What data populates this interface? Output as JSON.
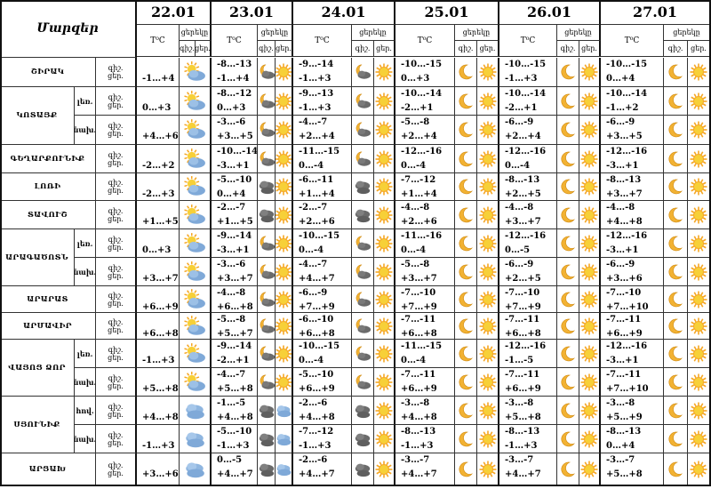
{
  "corner_label": "Մարզեր",
  "dates": [
    "22.01",
    "23.01",
    "24.01",
    "25.01",
    "26.01",
    "27.01"
  ],
  "temp_label": "T⁰C",
  "daytime_label": "ցերեկը",
  "night_short": "գիշ.",
  "day_short": "ցեր.",
  "rows": [
    {
      "region": "ՇԻՐԱԿ",
      "sub": "",
      "span_start": true,
      "span": 1,
      "days": [
        {
          "n": "",
          "d": "-1…+4",
          "ni": "",
          "di": "partly"
        },
        {
          "n": "-8…-13",
          "d": "-1…+4",
          "ni": "moon-cloud",
          "di": "sun"
        },
        {
          "n": "-9…-14",
          "d": "-1…+3",
          "ni": "moon-cloud",
          "di": "sun"
        },
        {
          "n": "-10…-15",
          "d": "0…+3",
          "ni": "moon",
          "di": "sun"
        },
        {
          "n": "-10…-15",
          "d": "-1…+3",
          "ni": "moon",
          "di": "sun"
        },
        {
          "n": "-10…-15",
          "d": "0…+4",
          "ni": "moon",
          "di": "sun"
        }
      ]
    },
    {
      "region": "ԿՈՏԱՅՔ",
      "sub": "լեռ.",
      "span_start": true,
      "span": 2,
      "days": [
        {
          "n": "",
          "d": "0…+3",
          "ni": "",
          "di": "partly"
        },
        {
          "n": "-8…-12",
          "d": "0…+3",
          "ni": "moon-cloud",
          "di": "sun"
        },
        {
          "n": "-9…-13",
          "d": "-1…+3",
          "ni": "moon-cloud",
          "di": "sun"
        },
        {
          "n": "-10…-14",
          "d": "-2…+1",
          "ni": "moon",
          "di": "sun"
        },
        {
          "n": "-10…-14",
          "d": "-2…+1",
          "ni": "moon",
          "di": "sun"
        },
        {
          "n": "-10…-14",
          "d": "-1…+2",
          "ni": "moon",
          "di": "sun"
        }
      ]
    },
    {
      "region": "",
      "sub": "նախ.",
      "span_start": false,
      "days": [
        {
          "n": "",
          "d": "+4…+6",
          "ni": "",
          "di": "partly"
        },
        {
          "n": "-3…-6",
          "d": "+3…+5",
          "ni": "moon-cloud",
          "di": "sun"
        },
        {
          "n": "-4…-7",
          "d": "+2…+4",
          "ni": "moon-cloud",
          "di": "sun"
        },
        {
          "n": "-5…-8",
          "d": "+2…+4",
          "ni": "moon",
          "di": "sun"
        },
        {
          "n": "-6…-9",
          "d": "+2…+4",
          "ni": "moon",
          "di": "sun"
        },
        {
          "n": "-6…-9",
          "d": "+3…+5",
          "ni": "moon",
          "di": "sun"
        }
      ]
    },
    {
      "region": "ԳԵՂԱՐՔՈՒՆԻՔ",
      "sub": "",
      "span_start": true,
      "span": 1,
      "days": [
        {
          "n": "",
          "d": "-2…+2",
          "ni": "",
          "di": "partly"
        },
        {
          "n": "-10…-14",
          "d": "-3…+1",
          "ni": "moon-cloud",
          "di": "sun"
        },
        {
          "n": "-11…-15",
          "d": "0…-4",
          "ni": "moon-cloud",
          "di": "sun"
        },
        {
          "n": "-12…-16",
          "d": "0…-4",
          "ni": "moon",
          "di": "sun"
        },
        {
          "n": "-12…-16",
          "d": "0…-4",
          "ni": "moon",
          "di": "sun"
        },
        {
          "n": "-12…-16",
          "d": "-3…+1",
          "ni": "moon",
          "di": "sun"
        }
      ]
    },
    {
      "region": "ԼՈՌԻ",
      "sub": "",
      "span_start": true,
      "span": 1,
      "days": [
        {
          "n": "",
          "d": "-2…+3",
          "ni": "",
          "di": "partly"
        },
        {
          "n": "-5…-10",
          "d": "0…+4",
          "ni": "cloud",
          "di": "sun"
        },
        {
          "n": "-6…-11",
          "d": "+1…+4",
          "ni": "cloud",
          "di": "sun"
        },
        {
          "n": "-7…-12",
          "d": "+1…+4",
          "ni": "moon",
          "di": "sun"
        },
        {
          "n": "-8…-13",
          "d": "+2…+5",
          "ni": "moon",
          "di": "sun"
        },
        {
          "n": "-8…-13",
          "d": "+3…+7",
          "ni": "moon",
          "di": "sun"
        }
      ]
    },
    {
      "region": "ՏԱՎՈՒՇ",
      "sub": "",
      "span_start": true,
      "span": 1,
      "days": [
        {
          "n": "",
          "d": "+1…+5",
          "ni": "",
          "di": "partly"
        },
        {
          "n": "-2…-7",
          "d": "+1…+5",
          "ni": "cloud",
          "di": "sun"
        },
        {
          "n": "-2…-7",
          "d": "+2…+6",
          "ni": "cloud",
          "di": "sun"
        },
        {
          "n": "-4…-8",
          "d": "+2…+6",
          "ni": "moon",
          "di": "sun"
        },
        {
          "n": "-4…-8",
          "d": "+3…+7",
          "ni": "moon",
          "di": "sun"
        },
        {
          "n": "-4…-8",
          "d": "+4…+8",
          "ni": "moon",
          "di": "sun"
        }
      ]
    },
    {
      "region": "ԱՐԱԳԱԾՈՏՆ",
      "sub": "լեռ.",
      "span_start": true,
      "span": 2,
      "days": [
        {
          "n": "",
          "d": "0…+3",
          "ni": "",
          "di": "partly"
        },
        {
          "n": "-9…-14",
          "d": "-3…+1",
          "ni": "moon-cloud",
          "di": "sun"
        },
        {
          "n": "-10…-15",
          "d": "0…-4",
          "ni": "moon-cloud",
          "di": "sun"
        },
        {
          "n": "-11…-16",
          "d": "0…-4",
          "ni": "moon",
          "di": "sun"
        },
        {
          "n": "-12…-16",
          "d": "0…-5",
          "ni": "moon",
          "di": "sun"
        },
        {
          "n": "-12…-16",
          "d": "-3…+1",
          "ni": "moon",
          "di": "sun"
        }
      ]
    },
    {
      "region": "",
      "sub": "նախ.",
      "span_start": false,
      "days": [
        {
          "n": "",
          "d": "+3…+7",
          "ni": "",
          "di": "partly"
        },
        {
          "n": "-3…-6",
          "d": "+3…+7",
          "ni": "moon-cloud",
          "di": "sun"
        },
        {
          "n": "-4…-7",
          "d": "+4…+7",
          "ni": "moon-cloud",
          "di": "sun"
        },
        {
          "n": "-5…-8",
          "d": "+3…+7",
          "ni": "moon",
          "di": "sun"
        },
        {
          "n": "-6…-9",
          "d": "+2…+5",
          "ni": "moon",
          "di": "sun"
        },
        {
          "n": "-6…-9",
          "d": "+3…+6",
          "ni": "moon",
          "di": "sun"
        }
      ]
    },
    {
      "region": "ԱՐԱՐԱՏ",
      "sub": "",
      "span_start": true,
      "span": 1,
      "days": [
        {
          "n": "",
          "d": "+6…+9",
          "ni": "",
          "di": "partly"
        },
        {
          "n": "-4…-8",
          "d": "+6…+8",
          "ni": "moon-cloud",
          "di": "sun"
        },
        {
          "n": "-6…-9",
          "d": "+7…+9",
          "ni": "moon-cloud",
          "di": "sun"
        },
        {
          "n": "-7…-10",
          "d": "+7…+9",
          "ni": "moon",
          "di": "sun"
        },
        {
          "n": "-7…-10",
          "d": "+7…+9",
          "ni": "moon",
          "di": "sun"
        },
        {
          "n": "-7…-10",
          "d": "+7…+10",
          "ni": "moon",
          "di": "sun"
        }
      ]
    },
    {
      "region": "ԱՐՄԱՎԻՐ",
      "sub": "",
      "span_start": true,
      "span": 1,
      "days": [
        {
          "n": "",
          "d": "+6…+8",
          "ni": "",
          "di": "partly"
        },
        {
          "n": "-5…-8",
          "d": "+5…+7",
          "ni": "moon-cloud",
          "di": "sun"
        },
        {
          "n": "-6…-10",
          "d": "+6…+8",
          "ni": "moon-cloud",
          "di": "sun"
        },
        {
          "n": "-7…-11",
          "d": "+6…+8",
          "ni": "moon",
          "di": "sun"
        },
        {
          "n": "-7…-11",
          "d": "+6…+8",
          "ni": "moon",
          "di": "sun"
        },
        {
          "n": "-7…-11",
          "d": "+6…+9",
          "ni": "moon",
          "di": "sun"
        }
      ]
    },
    {
      "region": "ՎԱՅՈՑ ՁՈՐ",
      "sub": "լեռ.",
      "span_start": true,
      "span": 2,
      "days": [
        {
          "n": "",
          "d": "-1…+3",
          "ni": "",
          "di": "partly"
        },
        {
          "n": "-9…-14",
          "d": "-2…+1",
          "ni": "moon-cloud",
          "di": "sun"
        },
        {
          "n": "-10…-15",
          "d": "0…-4",
          "ni": "moon-cloud",
          "di": "sun"
        },
        {
          "n": "-11…-15",
          "d": "0…-4",
          "ni": "moon",
          "di": "sun"
        },
        {
          "n": "-12…-16",
          "d": "-1…-5",
          "ni": "moon",
          "di": "sun"
        },
        {
          "n": "-12…-16",
          "d": "-3…+1",
          "ni": "moon",
          "di": "sun"
        }
      ]
    },
    {
      "region": "",
      "sub": "նախ.",
      "span_start": false,
      "days": [
        {
          "n": "",
          "d": "+5…+8",
          "ni": "",
          "di": "partly"
        },
        {
          "n": "-4…-7",
          "d": "+5…+8",
          "ni": "moon-cloud",
          "di": "sun"
        },
        {
          "n": "-5…-10",
          "d": "+6…+9",
          "ni": "moon-cloud",
          "di": "sun"
        },
        {
          "n": "-7…-11",
          "d": "+6…+9",
          "ni": "moon",
          "di": "sun"
        },
        {
          "n": "-7…-11",
          "d": "+6…+9",
          "ni": "moon",
          "di": "sun"
        },
        {
          "n": "-7…-11",
          "d": "+7…+10",
          "ni": "moon",
          "di": "sun"
        }
      ]
    },
    {
      "region": "ՍՅՈՒՆԻՔ",
      "sub": "հով.",
      "span_start": true,
      "span": 2,
      "days": [
        {
          "n": "",
          "d": "+4…+8",
          "ni": "",
          "di": "cloudy"
        },
        {
          "n": "-1…-5",
          "d": "+4…+8",
          "ni": "cloud",
          "di": "cloudy"
        },
        {
          "n": "-2…-6",
          "d": "+4…+8",
          "ni": "cloud",
          "di": "sun"
        },
        {
          "n": "-3…-8",
          "d": "+4…+8",
          "ni": "moon",
          "di": "sun"
        },
        {
          "n": "-3…-8",
          "d": "+5…+8",
          "ni": "moon",
          "di": "sun"
        },
        {
          "n": "-3…-8",
          "d": "+5…+9",
          "ni": "moon",
          "di": "sun"
        }
      ]
    },
    {
      "region": "",
      "sub": "նախ.",
      "span_start": false,
      "days": [
        {
          "n": "",
          "d": "-1…+3",
          "ni": "",
          "di": "cloudy"
        },
        {
          "n": "-5…-10",
          "d": "-1…+3",
          "ni": "cloud",
          "di": "cloudy"
        },
        {
          "n": "-7…-12",
          "d": "-1…+3",
          "ni": "cloud",
          "di": "sun"
        },
        {
          "n": "-8…-13",
          "d": "-1…+3",
          "ni": "moon",
          "di": "sun"
        },
        {
          "n": "-8…-13",
          "d": "-1…+3",
          "ni": "moon",
          "di": "sun"
        },
        {
          "n": "-8…-13",
          "d": "0…+4",
          "ni": "moon",
          "di": "sun"
        }
      ]
    },
    {
      "region": "ԱՐՑԱԽ",
      "sub": "",
      "span_start": true,
      "span": 1,
      "days": [
        {
          "n": "",
          "d": "+3…+6",
          "ni": "",
          "di": "cloudy"
        },
        {
          "n": "0…-5",
          "d": "+4…+7",
          "ni": "cloud",
          "di": "cloudy"
        },
        {
          "n": "-2…-6",
          "d": "+4…+7",
          "ni": "cloud",
          "di": "sun"
        },
        {
          "n": "-3…-7",
          "d": "+4…+7",
          "ni": "moon",
          "di": "sun"
        },
        {
          "n": "-3…-7",
          "d": "+4…+7",
          "ni": "moon",
          "di": "sun"
        },
        {
          "n": "-3…-7",
          "d": "+5…+8",
          "ni": "moon",
          "di": "sun"
        }
      ]
    }
  ],
  "colors": {
    "sun": "#f5a623",
    "sun_core": "#f7d038",
    "moon": "#f2b233",
    "cloud": "#7fa9d8",
    "dark_cloud": "#6b6b6b"
  }
}
